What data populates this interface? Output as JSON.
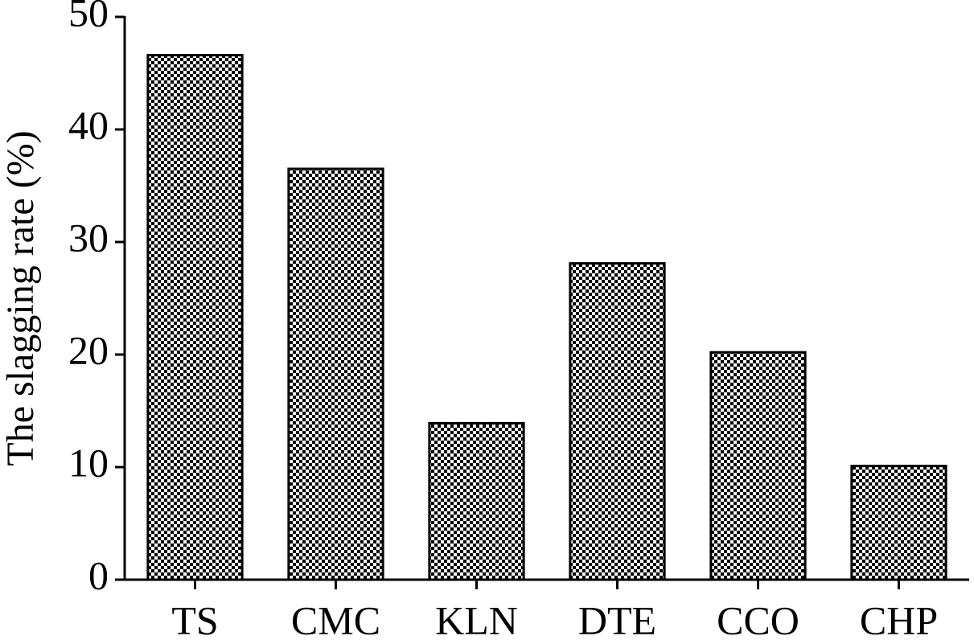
{
  "chart_data": {
    "type": "bar",
    "ylabel": "The slagging rate (%)",
    "categories": [
      "TS",
      "CMC",
      "KLN",
      "DTE",
      "CCO",
      "CHP"
    ],
    "values": [
      46.6,
      36.5,
      13.9,
      28.1,
      20.2,
      10.1
    ],
    "color": "#000000",
    "ylim": [
      0,
      50
    ],
    "yticks": [
      0,
      10,
      20,
      30,
      40,
      50
    ],
    "grid": false
  }
}
